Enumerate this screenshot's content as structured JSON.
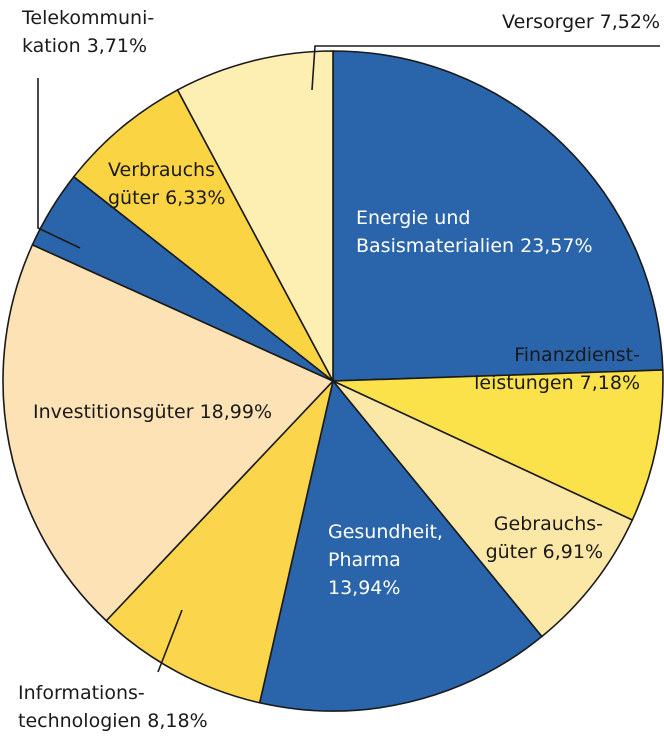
{
  "chart_data": {
    "type": "pie",
    "categories": [
      [
        "Energie und",
        "Basismaterialien"
      ],
      [
        "Finanzdienst-",
        "leistungen"
      ],
      [
        "Gebrauchs-",
        "güter"
      ],
      [
        "Gesundheit,",
        "Pharma"
      ],
      [
        "Informations-",
        "technologien"
      ],
      [
        "Investitionsgüter"
      ],
      [
        "Telekommuni-",
        "kation"
      ],
      [
        "Verbrauchs",
        "güter"
      ],
      [
        "Versorger"
      ]
    ],
    "values": [
      23.57,
      7.18,
      6.91,
      13.94,
      8.18,
      18.99,
      3.71,
      6.33,
      7.52
    ],
    "value_labels": [
      "23,57%",
      "7,18%",
      "6,91%",
      "13,94%",
      "8,18%",
      "18,99%",
      "3,71%",
      "6,33%",
      "7,52%"
    ],
    "colors": [
      "#2a64aa",
      "#fbe14a",
      "#fce8a6",
      "#2a64aa",
      "#fbd64c",
      "#fde2b6",
      "#2a64aa",
      "#fbd444",
      "#fdefb2"
    ]
  }
}
